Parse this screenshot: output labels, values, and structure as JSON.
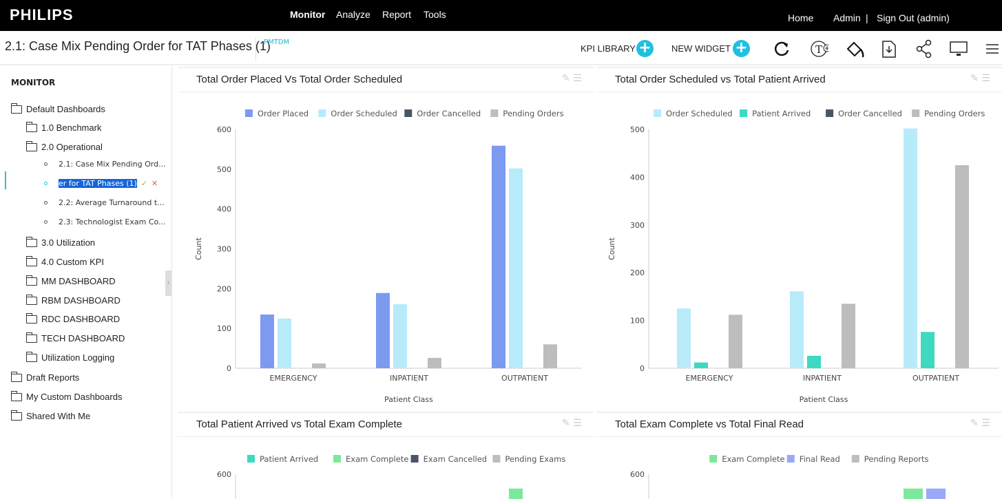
{
  "topbar": {
    "logo": "PHILIPS",
    "nav": [
      "Monitor",
      "Analyze",
      "Report",
      "Tools"
    ],
    "right": {
      "home": "Home",
      "admin": "Admin",
      "sep": "|",
      "signout": "Sign Out (admin)"
    }
  },
  "subheader": {
    "title": "2.1: Case Mix Pending Order for TAT Phases (1)",
    "tag": "PMTDM",
    "kpi_library": "KPI LIBRARY",
    "new_widget": "NEW WIDGET",
    "icons": [
      "plus-icon",
      "refresh-icon",
      "text-add-icon",
      "paint-bucket-icon",
      "download-file-icon",
      "share-icon",
      "monitor-icon",
      "menu-icon"
    ]
  },
  "sidebar": {
    "heading": "MONITOR",
    "items": [
      {
        "label": "Default Dashboards",
        "level": 0,
        "open": true
      },
      {
        "label": "1.0 Benchmark",
        "level": 1
      },
      {
        "label": "2.0 Operational",
        "level": 1,
        "open": true
      },
      {
        "label": "2.1: Case Mix Pending Ord...",
        "level": 2
      },
      {
        "label": "er for TAT Phases (1)",
        "level": 2,
        "editing": true
      },
      {
        "label": "2.2: Average Turnaround t...",
        "level": 2
      },
      {
        "label": "2.3: Technologist Exam Co...",
        "level": 2
      },
      {
        "label": "3.0 Utilization",
        "level": 1
      },
      {
        "label": "4.0 Custom KPI",
        "level": 1
      },
      {
        "label": "MM DASHBOARD",
        "level": 1
      },
      {
        "label": "RBM DASHBOARD",
        "level": 1
      },
      {
        "label": "RDC DASHBOARD",
        "level": 1
      },
      {
        "label": "TECH DASHBOARD",
        "level": 1
      },
      {
        "label": "Utilization Logging",
        "level": 1
      },
      {
        "label": "Draft Reports",
        "level": 0
      },
      {
        "label": "My Custom Dashboards",
        "level": 0
      },
      {
        "label": "Shared With Me",
        "level": 0
      }
    ],
    "confirm_icon": "✓",
    "cancel_icon": "✕"
  },
  "chart_data": [
    {
      "type": "bar",
      "title": "Total Order Placed Vs Total Order Scheduled",
      "xlabel": "Patient Class",
      "ylabel": "Count",
      "ylim": [
        0,
        600
      ],
      "yticks": [
        0,
        100,
        200,
        300,
        400,
        500,
        600
      ],
      "legend": "top",
      "grid": false,
      "categories": [
        "EMERGENCY",
        "INPATIENT",
        "OUTPATIENT"
      ],
      "series": [
        {
          "name": "Order Placed",
          "color": "#7b9af0",
          "values": [
            135,
            189,
            559
          ]
        },
        {
          "name": "Order Scheduled",
          "color": "#b8ebfa",
          "values": [
            125,
            161,
            502
          ]
        },
        {
          "name": "Order Cancelled",
          "color": "#4a5568",
          "values": [
            0,
            0,
            0
          ]
        },
        {
          "name": "Pending Orders",
          "color": "#bdbdbd",
          "values": [
            12,
            26,
            60
          ]
        }
      ]
    },
    {
      "type": "bar",
      "title": "Total Order Scheduled vs Total Patient Arrived",
      "xlabel": "Patient Class",
      "ylabel": "Count",
      "ylim": [
        0,
        500
      ],
      "yticks": [
        0,
        100,
        200,
        300,
        400,
        500
      ],
      "legend": "top",
      "grid": false,
      "categories": [
        "EMERGENCY",
        "INPATIENT",
        "OUTPATIENT"
      ],
      "series": [
        {
          "name": "Order Scheduled",
          "color": "#b8ebfa",
          "values": [
            125,
            161,
            502
          ]
        },
        {
          "name": "Patient Arrived",
          "color": "#3dd9c1",
          "values": [
            12,
            26,
            76
          ]
        },
        {
          "name": "Order Cancelled",
          "color": "#4a5568",
          "values": [
            0,
            0,
            0
          ]
        },
        {
          "name": "Pending Orders",
          "color": "#bdbdbd",
          "values": [
            112,
            135,
            425
          ]
        }
      ]
    },
    {
      "type": "bar",
      "title": "Total Patient Arrived vs Total Exam Complete",
      "ylim": [
        0,
        600
      ],
      "yticks": [
        600
      ],
      "legend": "top",
      "series": [
        {
          "name": "Patient Arrived",
          "color": "#3dd9c1",
          "values": [
            null,
            null,
            null
          ]
        },
        {
          "name": "Exam Complete",
          "color": "#7ce89a",
          "values": [
            null,
            null,
            564
          ]
        },
        {
          "name": "Exam Cancelled",
          "color": "#4a5568",
          "values": [
            null,
            null,
            null
          ]
        },
        {
          "name": "Pending Exams",
          "color": "#bdbdbd",
          "values": [
            null,
            null,
            null
          ]
        }
      ]
    },
    {
      "type": "bar",
      "title": "Total Exam Complete vs Total Final Read",
      "ylim": [
        0,
        600
      ],
      "yticks": [
        600
      ],
      "legend": "top",
      "series": [
        {
          "name": "Exam Complete",
          "color": "#7ce89a",
          "values": [
            null,
            null,
            564
          ]
        },
        {
          "name": "Final Read",
          "color": "#9aa8f5",
          "values": [
            null,
            null,
            564
          ]
        },
        {
          "name": "Pending Reports",
          "color": "#bdbdbd",
          "values": [
            null,
            null,
            null
          ]
        }
      ]
    }
  ]
}
